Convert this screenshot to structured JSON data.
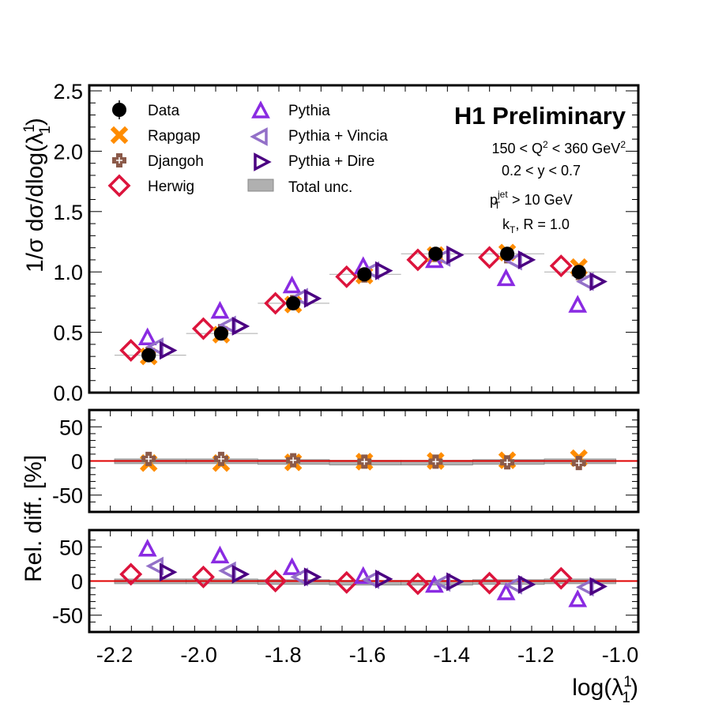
{
  "chart_data": {
    "type": "scatter",
    "title": "H1 Preliminary",
    "annotations": [
      "150 < Q² < 360 GeV²",
      "0.2 < y < 0.7",
      "p_T^jet > 10 GeV",
      "k_T, R = 1.0"
    ],
    "annotation_parts": {
      "q2_prefix": "150 < Q",
      "q2_sup": "2",
      "q2_mid": " < 360 GeV",
      "q2_sup2": "2",
      "y_range": "0.2 < y < 0.7",
      "pt_base": "p",
      "pt_sup": "jet",
      "pt_sub": "T",
      "pt_rest": " > 10 GeV",
      "kt_base": "k",
      "kt_sub": "T",
      "kt_rest": ", R = 1.0"
    },
    "xlabel": "log(λ₁¹)",
    "xlabel_parts": {
      "base": "log(λ",
      "sup": "1",
      "sub": "1",
      "close": ")"
    },
    "ylabel_main": "1/σ dσ/dlog(λ₁¹)",
    "ylabel_main_parts": {
      "base": "1/σ dσ/dlog(λ",
      "sup": "1",
      "sub": "1",
      "close": ")"
    },
    "ylabel_ratio": "Rel. diff. [%]",
    "xlim": [
      -2.26,
      -0.957
    ],
    "xticks": [
      -2.2,
      -2.0,
      -1.8,
      -1.6,
      -1.4,
      -1.2,
      -1.0
    ],
    "xtick_labels": [
      "-2.2",
      "-2.0",
      "-1.8",
      "-1.6",
      "-1.4",
      "-1.2",
      "-1.0"
    ],
    "main_ylim": [
      0.0,
      2.55
    ],
    "main_yticks": [
      0.0,
      0.5,
      1.0,
      1.5,
      2.0,
      2.5
    ],
    "main_ytick_labels": [
      "0.0",
      "0.5",
      "1.0",
      "1.5",
      "2.0",
      "2.5"
    ],
    "ratio_ylim": [
      -70,
      70
    ],
    "ratio_yticks": [
      -50,
      0,
      50
    ],
    "ratio_ytick_labels": [
      "-50",
      "0",
      "50"
    ],
    "bin_edges": [
      -2.2,
      -2.03,
      -1.86,
      -1.69,
      -1.52,
      -1.35,
      -1.18,
      -1.01
    ],
    "x": [
      -2.119,
      -1.947,
      -1.776,
      -1.607,
      -1.438,
      -1.268,
      -1.098
    ],
    "legend_placement": "top-left",
    "series": [
      {
        "name": "Data",
        "marker": "circle",
        "color": "#000000",
        "values": [
          0.31,
          0.49,
          0.74,
          0.98,
          1.15,
          1.15,
          1.0
        ],
        "rel_diff": [
          0,
          0,
          0,
          0,
          0,
          0,
          0
        ],
        "panel_rel": "none"
      },
      {
        "name": "Rapgap",
        "marker": "x-cross",
        "color": "#ff8c00",
        "values": [
          0.3,
          0.48,
          0.73,
          0.97,
          1.14,
          1.16,
          1.04
        ],
        "rel_diff": [
          -3,
          -3,
          -2,
          -1,
          0,
          1,
          4
        ],
        "panel_rel": "upper"
      },
      {
        "name": "Djangoh",
        "marker": "plus",
        "color": "#8b5a4a",
        "values": [
          0.32,
          0.51,
          0.75,
          0.97,
          1.14,
          1.13,
          0.99
        ],
        "rel_diff": [
          3,
          3,
          1,
          -1,
          -1,
          -2,
          -3
        ],
        "panel_rel": "upper"
      },
      {
        "name": "Herwig",
        "marker": "diamond",
        "color": "#dc143c",
        "values": [
          0.35,
          0.53,
          0.74,
          0.96,
          1.1,
          1.12,
          1.05
        ],
        "rel_diff": [
          10,
          6,
          0,
          -2,
          -4,
          -3,
          4
        ],
        "panel_rel": "lower"
      },
      {
        "name": "Pythia",
        "marker": "triangle-up",
        "color": "#8a2be2",
        "values": [
          0.45,
          0.67,
          0.88,
          1.04,
          1.09,
          0.94,
          0.72
        ],
        "rel_diff": [
          46,
          36,
          19,
          6,
          -7,
          -18,
          -28
        ],
        "panel_rel": "lower"
      },
      {
        "name": "Pythia + Vincia",
        "marker": "triangle-left",
        "color": "#9370c8",
        "values": [
          0.38,
          0.56,
          0.79,
          1.01,
          1.12,
          1.09,
          0.92
        ],
        "rel_diff": [
          22,
          15,
          6,
          2,
          -2,
          -6,
          -9
        ],
        "panel_rel": "lower"
      },
      {
        "name": "Pythia + Dire",
        "marker": "triangle-right",
        "color": "#4b0082",
        "values": [
          0.35,
          0.55,
          0.78,
          1.01,
          1.14,
          1.1,
          0.92
        ],
        "rel_diff": [
          13,
          10,
          6,
          3,
          -1,
          -5,
          -8
        ],
        "panel_rel": "lower"
      }
    ],
    "total_unc": {
      "name": "Total unc.",
      "color": "#b0b0b0",
      "rel_half_width": [
        3,
        3,
        2,
        1,
        1,
        2,
        3
      ]
    }
  }
}
